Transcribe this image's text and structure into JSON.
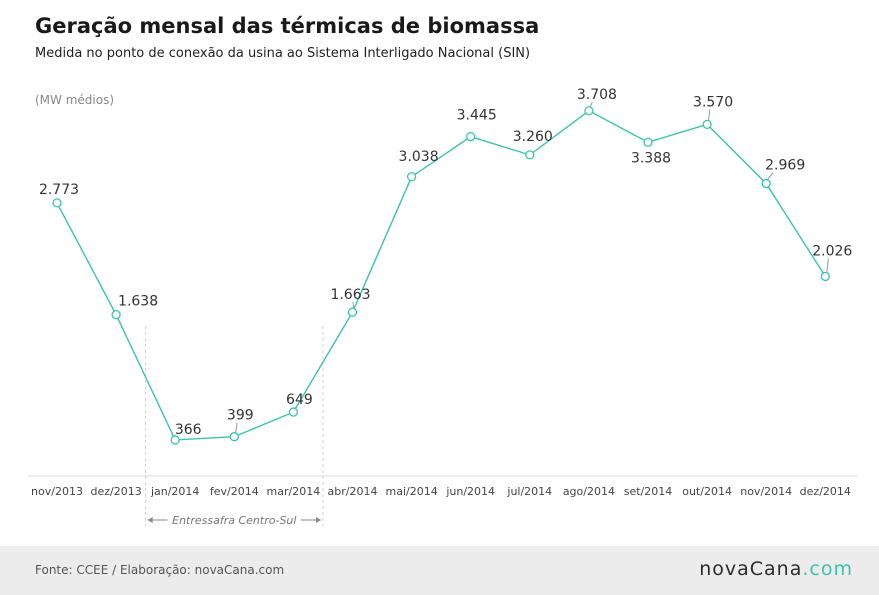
{
  "header": {
    "title": "Geração mensal das térmicas de biomassa",
    "subtitle": "Medida no ponto de conexão da usina ao Sistema Interligado Nacional (SIN)"
  },
  "chart_data": {
    "type": "line",
    "unit_label": "(MW médios)",
    "categories": [
      "nov/2013",
      "dez/2013",
      "jan/2014",
      "fev/2014",
      "mar/2014",
      "abr/2014",
      "mai/2014",
      "jun/2014",
      "jul/2014",
      "ago/2014",
      "set/2014",
      "out/2014",
      "nov/2014",
      "dez/2014"
    ],
    "values": [
      2773,
      1638,
      366,
      399,
      649,
      1663,
      3038,
      3445,
      3260,
      3708,
      3388,
      3570,
      2969,
      2026
    ],
    "value_labels": [
      "2.773",
      "1.638",
      "366",
      "399",
      "649",
      "1.663",
      "3.038",
      "3.445",
      "3.260",
      "3.708",
      "3.388",
      "3.570",
      "2.969",
      "2.026"
    ],
    "ylim": [
      0,
      4000
    ],
    "grid": false,
    "line_color": "#3cc4ab",
    "annotation": {
      "label": "Entressafra Centro-Sul",
      "from_category": "dez/2013",
      "to_category": "mar/2014"
    }
  },
  "footer": {
    "source": "Fonte: CCEE / Elaboração: novaCana.com",
    "brand_part1": "novaCana",
    "brand_part2": ".com"
  }
}
